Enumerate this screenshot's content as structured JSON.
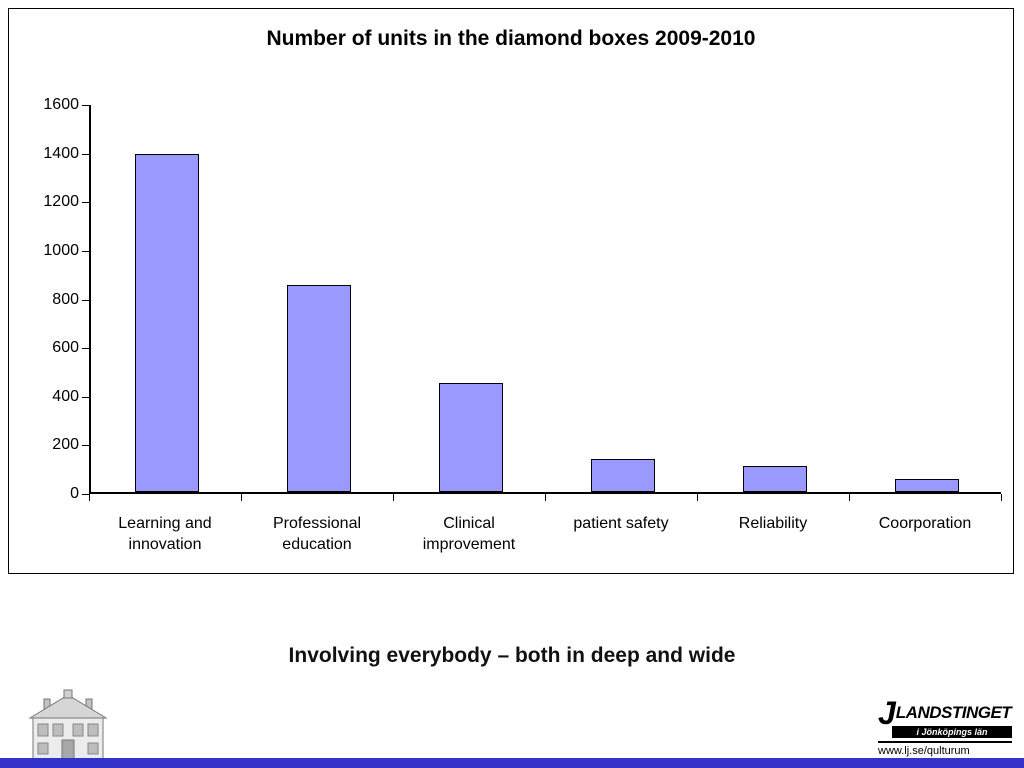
{
  "slide": {
    "subtitle": "Involving everybody – both in deep and wide"
  },
  "chart_data": {
    "type": "bar",
    "title": "Number of units in the diamond boxes 2009-2010",
    "categories": [
      "Learning and\ninnovation",
      "Professional\neducation",
      "Clinical\nimprovement",
      "patient safety",
      "Reliability",
      "Coorporation"
    ],
    "values": [
      1390,
      850,
      450,
      135,
      105,
      55
    ],
    "ylim": [
      0,
      1600
    ],
    "ytick_step": 200,
    "xlabel": "",
    "ylabel": "",
    "grid": false,
    "legend": false,
    "bar_color": "#9999FF",
    "bar_border_color": "#000000"
  },
  "footer": {
    "logo_j": "J",
    "logo_name": "LANDSTINGET",
    "logo_region": "i Jönköpings län",
    "url": "www.lj.se/qulturum"
  },
  "icons": {
    "house": "qulturum-house-image"
  },
  "colors": {
    "bottom_strip": "#3333CC",
    "frame_border": "#000000"
  }
}
